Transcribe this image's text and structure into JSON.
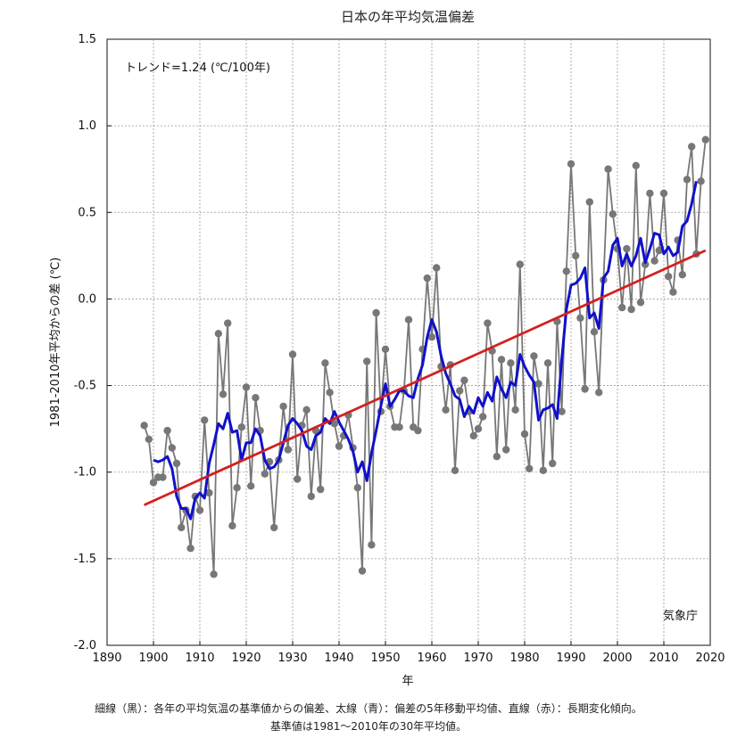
{
  "chart_data": {
    "type": "line",
    "title": "日本の年平均気温偏差",
    "xlabel": "年",
    "ylabel": "1981-2010年平均からの差 (℃)",
    "trend_label": "トレンド=1.24 (℃/100年)",
    "source_label": "気象庁",
    "xlim": [
      1890,
      2020
    ],
    "ylim": [
      -2.0,
      1.5
    ],
    "x_ticks": [
      1890,
      1900,
      1910,
      1920,
      1930,
      1940,
      1950,
      1960,
      1970,
      1980,
      1990,
      2000,
      2010,
      2020
    ],
    "y_ticks": [
      -2.0,
      -1.5,
      -1.0,
      -0.5,
      0.0,
      0.5,
      1.0,
      1.5
    ],
    "y_tick_labels": [
      "-2.0",
      "-1.5",
      "-1.0",
      "-0.5",
      "0.0",
      "0.5",
      "1.0",
      "1.5"
    ],
    "grid": true,
    "series": [
      {
        "style": "gray line with dots",
        "color": "#777777",
        "x": [
          1898,
          1899,
          1900,
          1901,
          1902,
          1903,
          1904,
          1905,
          1906,
          1907,
          1908,
          1909,
          1910,
          1911,
          1912,
          1913,
          1914,
          1915,
          1916,
          1917,
          1918,
          1919,
          1920,
          1921,
          1922,
          1923,
          1924,
          1925,
          1926,
          1927,
          1928,
          1929,
          1930,
          1931,
          1932,
          1933,
          1934,
          1935,
          1936,
          1937,
          1938,
          1939,
          1940,
          1941,
          1942,
          1943,
          1944,
          1945,
          1946,
          1947,
          1948,
          1949,
          1950,
          1951,
          1952,
          1953,
          1954,
          1955,
          1956,
          1957,
          1958,
          1959,
          1960,
          1961,
          1962,
          1963,
          1964,
          1965,
          1966,
          1967,
          1968,
          1969,
          1970,
          1971,
          1972,
          1973,
          1974,
          1975,
          1976,
          1977,
          1978,
          1979,
          1980,
          1981,
          1982,
          1983,
          1984,
          1985,
          1986,
          1987,
          1988,
          1989,
          1990,
          1991,
          1992,
          1993,
          1994,
          1995,
          1996,
          1997,
          1998,
          1999,
          2000,
          2001,
          2002,
          2003,
          2004,
          2005,
          2006,
          2007,
          2008,
          2009,
          2010,
          2011,
          2012,
          2013,
          2014,
          2015,
          2016,
          2017,
          2018,
          2019
        ],
        "y": [
          -0.73,
          -0.81,
          -1.06,
          -1.03,
          -1.03,
          -0.76,
          -0.86,
          -0.95,
          -1.32,
          -1.22,
          -1.44,
          -1.14,
          -1.22,
          -0.7,
          -1.12,
          -1.59,
          -0.2,
          -0.55,
          -0.14,
          -1.31,
          -1.09,
          -0.74,
          -0.51,
          -1.08,
          -0.57,
          -0.76,
          -1.01,
          -0.94,
          -1.32,
          -0.93,
          -0.62,
          -0.87,
          -0.32,
          -1.04,
          -0.73,
          -0.64,
          -1.14,
          -0.76,
          -1.1,
          -0.37,
          -0.54,
          -0.72,
          -0.85,
          -0.79,
          -0.67,
          -0.86,
          -1.09,
          -1.57,
          -0.36,
          -1.42,
          -0.08,
          -0.65,
          -0.29,
          -0.62,
          -0.74,
          -0.74,
          -0.53,
          -0.12,
          -0.74,
          -0.76,
          -0.29,
          0.12,
          -0.22,
          0.18,
          -0.39,
          -0.64,
          -0.38,
          -0.99,
          -0.53,
          -0.47,
          -0.65,
          -0.79,
          -0.75,
          -0.68,
          -0.14,
          -0.3,
          -0.91,
          -0.35,
          -0.87,
          -0.37,
          -0.64,
          0.2,
          -0.78,
          -0.98,
          -0.33,
          -0.49,
          -0.99,
          -0.37,
          -0.95,
          -0.13,
          -0.65,
          0.16,
          0.78,
          0.25,
          -0.11,
          -0.52,
          0.56,
          -0.19,
          -0.54,
          0.11,
          0.75,
          0.49,
          0.29,
          -0.05,
          0.29,
          -0.06,
          0.77,
          -0.02,
          0.2,
          0.61,
          0.22,
          0.28,
          0.61,
          0.13,
          0.04,
          0.34,
          0.14,
          0.69,
          0.88,
          0.26,
          0.68,
          0.92
        ]
      },
      {
        "style": "blue thick line",
        "color": "#1010cc",
        "x": [
          1900,
          1901,
          1902,
          1903,
          1904,
          1905,
          1906,
          1907,
          1908,
          1909,
          1910,
          1911,
          1912,
          1913,
          1914,
          1915,
          1916,
          1917,
          1918,
          1919,
          1920,
          1921,
          1922,
          1923,
          1924,
          1925,
          1926,
          1927,
          1928,
          1929,
          1930,
          1931,
          1932,
          1933,
          1934,
          1935,
          1936,
          1937,
          1938,
          1939,
          1940,
          1941,
          1942,
          1943,
          1944,
          1945,
          1946,
          1947,
          1948,
          1949,
          1950,
          1951,
          1952,
          1953,
          1954,
          1955,
          1956,
          1957,
          1958,
          1959,
          1960,
          1961,
          1962,
          1963,
          1964,
          1965,
          1966,
          1967,
          1968,
          1969,
          1970,
          1971,
          1972,
          1973,
          1974,
          1975,
          1976,
          1977,
          1978,
          1979,
          1980,
          1981,
          1982,
          1983,
          1984,
          1985,
          1986,
          1987,
          1988,
          1989,
          1990,
          1991,
          1992,
          1993,
          1994,
          1995,
          1996,
          1997,
          1998,
          1999,
          2000,
          2001,
          2002,
          2003,
          2004,
          2005,
          2006,
          2007,
          2008,
          2009,
          2010,
          2011,
          2012,
          2013,
          2014,
          2015,
          2016,
          2017
        ],
        "y": [
          -0.93,
          -0.94,
          -0.93,
          -0.91,
          -0.98,
          -1.14,
          -1.21,
          -1.21,
          -1.27,
          -1.15,
          -1.12,
          -1.15,
          -0.95,
          -0.84,
          -0.72,
          -0.75,
          -0.66,
          -0.77,
          -0.76,
          -0.93,
          -0.83,
          -0.83,
          -0.75,
          -0.79,
          -0.93,
          -0.98,
          -0.97,
          -0.93,
          -0.83,
          -0.73,
          -0.69,
          -0.72,
          -0.76,
          -0.85,
          -0.87,
          -0.79,
          -0.77,
          -0.69,
          -0.72,
          -0.65,
          -0.71,
          -0.76,
          -0.81,
          -0.88,
          -1.0,
          -0.94,
          -1.05,
          -0.89,
          -0.76,
          -0.62,
          -0.49,
          -0.62,
          -0.58,
          -0.53,
          -0.53,
          -0.56,
          -0.57,
          -0.46,
          -0.38,
          -0.22,
          -0.12,
          -0.19,
          -0.33,
          -0.43,
          -0.49,
          -0.56,
          -0.58,
          -0.68,
          -0.62,
          -0.66,
          -0.57,
          -0.62,
          -0.54,
          -0.59,
          -0.45,
          -0.52,
          -0.57,
          -0.48,
          -0.5,
          -0.32,
          -0.39,
          -0.44,
          -0.48,
          -0.7,
          -0.64,
          -0.63,
          -0.61,
          -0.69,
          -0.35,
          -0.06,
          0.08,
          0.09,
          0.12,
          0.18,
          -0.11,
          -0.08,
          -0.17,
          0.12,
          0.16,
          0.31,
          0.35,
          0.19,
          0.26,
          0.19,
          0.25,
          0.35,
          0.21,
          0.29,
          0.38,
          0.37,
          0.26,
          0.3,
          0.25,
          0.27,
          0.42,
          0.45,
          0.55,
          0.68
        ]
      },
      {
        "style": "red trend line",
        "color": "#d42020",
        "x": [
          1898,
          2019
        ],
        "y": [
          -1.19,
          0.28
        ]
      }
    ],
    "footnote_line1": "細線（黒）：各年の平均気温の基準値からの偏差、太線（青）：偏差の5年移動平均値、直線（赤）：長期変化傾向。",
    "footnote_line2": "基準値は1981～2010年の30年平均値。"
  }
}
